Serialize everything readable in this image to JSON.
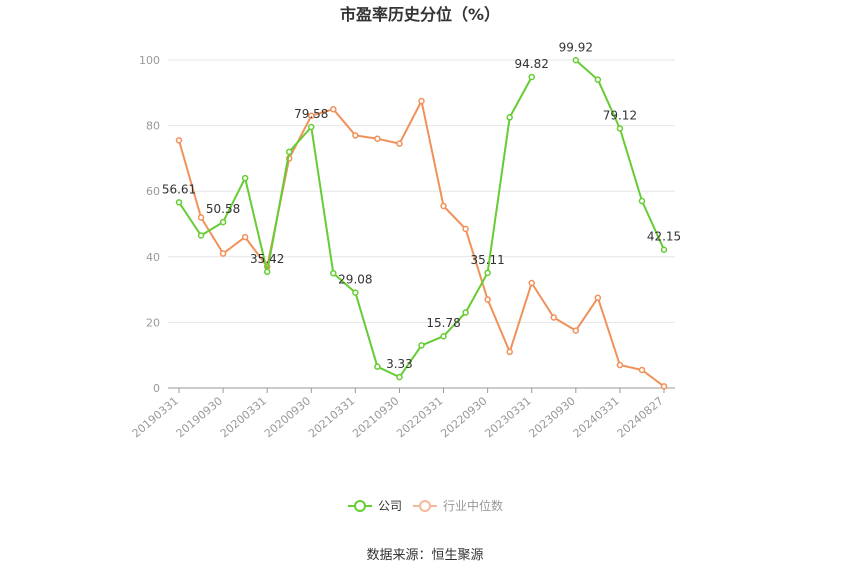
{
  "chart_data": {
    "type": "line",
    "title": "市盈率历史分位（%）",
    "xlabel": "",
    "ylabel": "",
    "ylim": [
      0,
      100
    ],
    "yticks": [
      0,
      20,
      40,
      60,
      80,
      100
    ],
    "grid": true,
    "legend_position": "bottom",
    "x": [
      "20190331",
      "20190630",
      "20190930",
      "20191231",
      "20200331",
      "20200630",
      "20200930",
      "20201231",
      "20210331",
      "20210630",
      "20210930",
      "20211231",
      "20220331",
      "20220630",
      "20220930",
      "20221231",
      "20230331",
      "20230630",
      "20230930",
      "20231231",
      "20240331",
      "20240630",
      "20240827"
    ],
    "x_tick_labels": [
      "20190331",
      "20190930",
      "20200331",
      "20200930",
      "20210331",
      "20210930",
      "20220331",
      "20220930",
      "20230331",
      "20230930",
      "20240331",
      "20240827"
    ],
    "series": [
      {
        "name": "公司",
        "color": "#66cc33",
        "values": [
          56.61,
          46.5,
          50.58,
          64.0,
          35.42,
          72.0,
          79.58,
          35.0,
          29.08,
          6.5,
          3.33,
          13.0,
          15.78,
          23.0,
          35.11,
          82.5,
          94.82,
          null,
          99.92,
          94.0,
          79.12,
          57.0,
          42.15
        ]
      },
      {
        "name": "行业中位数",
        "color": "#f0915a",
        "values": [
          75.5,
          52.0,
          41.0,
          46.0,
          37.0,
          70.0,
          83.0,
          85.0,
          77.0,
          76.0,
          74.5,
          87.5,
          55.5,
          48.5,
          27.0,
          11.0,
          32.0,
          21.5,
          17.5,
          27.5,
          7.0,
          5.5,
          0.5
        ]
      }
    ],
    "data_labels": [
      {
        "index": 0,
        "text": "56.61"
      },
      {
        "index": 2,
        "text": "50.58"
      },
      {
        "index": 4,
        "text": "35.42"
      },
      {
        "index": 6,
        "text": "79.58"
      },
      {
        "index": 8,
        "text": "29.08"
      },
      {
        "index": 10,
        "text": "3.33"
      },
      {
        "index": 12,
        "text": "15.78"
      },
      {
        "index": 14,
        "text": "35.11"
      },
      {
        "index": 16,
        "text": "94.82"
      },
      {
        "index": 18,
        "text": "99.92"
      },
      {
        "index": 20,
        "text": "79.12"
      },
      {
        "index": 22,
        "text": "42.15"
      }
    ]
  },
  "legend": {
    "company": "公司",
    "industry": "行业中位数"
  },
  "source": "数据来源：恒生聚源"
}
